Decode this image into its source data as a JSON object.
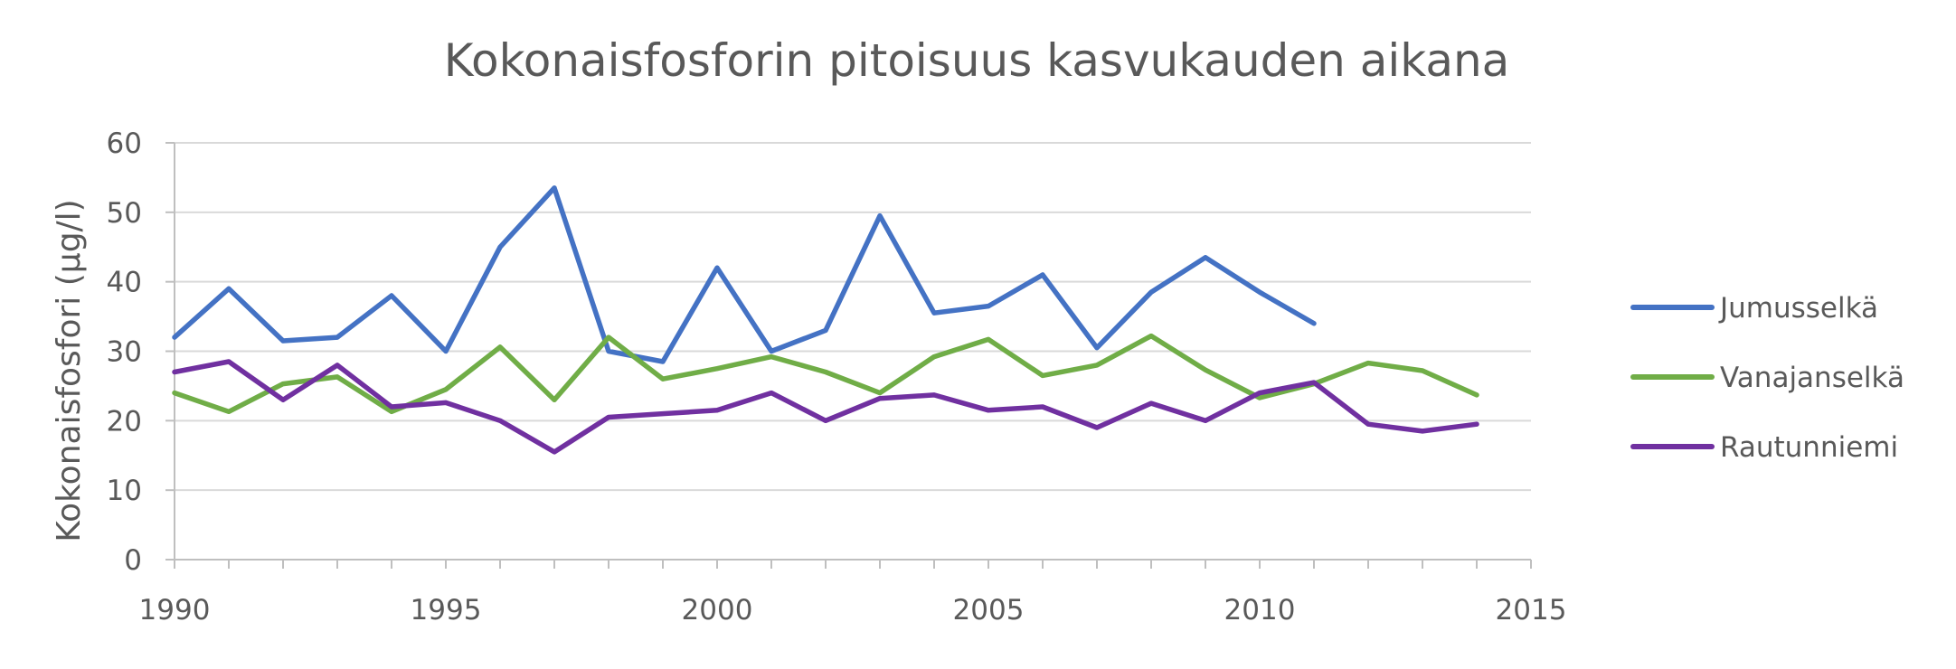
{
  "chart_data": {
    "type": "line",
    "title": "Kokonaisfosforin pitoisuus kasvukauden aikana",
    "xlabel": "",
    "ylabel": "Kokonaisfosfori (µg/l)",
    "xlim": [
      1990,
      2015
    ],
    "ylim": [
      0,
      60
    ],
    "x_ticks": [
      1990,
      1995,
      2000,
      2005,
      2010,
      2015
    ],
    "y_ticks": [
      0,
      10,
      20,
      30,
      40,
      50,
      60
    ],
    "grid": "horizontal",
    "legend_position": "right",
    "series": [
      {
        "name": "Jumusselkä",
        "color": "#4472C4",
        "x": [
          1990,
          1991,
          1992,
          1993,
          1994,
          1995,
          1996,
          1997,
          1998,
          1999,
          2000,
          2001,
          2002,
          2003,
          2004,
          2005,
          2006,
          2007,
          2008,
          2009,
          2010,
          2011
        ],
        "y": [
          32,
          39,
          31.5,
          32,
          38,
          30,
          45,
          53.5,
          30,
          28.5,
          42,
          30,
          33,
          49.5,
          35.5,
          36.5,
          41,
          30.5,
          38.5,
          43.5,
          38.5,
          34
        ]
      },
      {
        "name": "Vanajanselkä",
        "color": "#70AD47",
        "x": [
          1990,
          1991,
          1992,
          1993,
          1994,
          1995,
          1996,
          1997,
          1998,
          1999,
          2000,
          2001,
          2002,
          2003,
          2004,
          2005,
          2006,
          2007,
          2008,
          2009,
          2010,
          2011,
          2012,
          2013,
          2014
        ],
        "y": [
          24,
          21.3,
          25.3,
          26.3,
          21.3,
          24.5,
          30.6,
          23,
          32,
          26,
          27.5,
          29.2,
          27,
          24,
          29.2,
          31.7,
          26.5,
          28,
          32.2,
          27.3,
          23.3,
          25.3,
          28.3,
          27.2,
          23.7
        ]
      },
      {
        "name": "Rautunniemi",
        "color": "#7030A0",
        "x": [
          1990,
          1991,
          1992,
          1993,
          1994,
          1995,
          1996,
          1997,
          1998,
          1999,
          2000,
          2001,
          2002,
          2003,
          2004,
          2005,
          2006,
          2007,
          2008,
          2009,
          2010,
          2011,
          2012,
          2013,
          2014
        ],
        "y": [
          27,
          28.5,
          23,
          28,
          22,
          22.6,
          20,
          15.5,
          20.5,
          21,
          21.5,
          24,
          20,
          23.2,
          23.7,
          21.5,
          22,
          19,
          22.5,
          20,
          24,
          25.5,
          19.5,
          18.5,
          19.5
        ]
      }
    ]
  }
}
